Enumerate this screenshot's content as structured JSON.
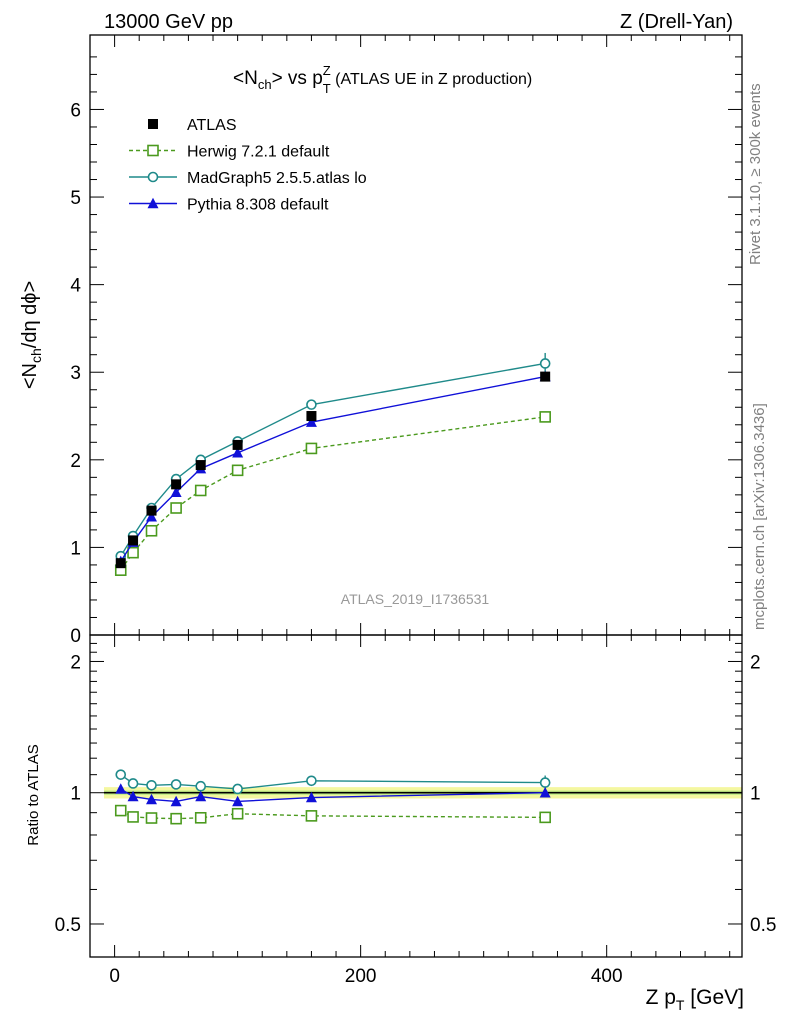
{
  "header": {
    "left": "13000 GeV pp",
    "right": "Z (Drell-Yan)"
  },
  "title": {
    "prefix": "<N",
    "sub1": "ch",
    "mid": "> vs p",
    "sup": "Z",
    "sub2": "T",
    "suffix": " (ATLAS UE in Z production)"
  },
  "side_labels": {
    "rivet": "Rivet 3.1.10, ≥ 300k events",
    "mcplots": "mcplots.cern.ch [arXiv:1306.3436]"
  },
  "watermark": "ATLAS_2019_I1736531",
  "ylabel_main": {
    "prefix": "<N",
    "sub": "ch",
    "suffix": "/dη dϕ>"
  },
  "ylabel_ratio": "Ratio to ATLAS",
  "xlabel": {
    "prefix": "Z p",
    "sub": "T",
    "suffix": " [GeV]"
  },
  "chart_data": [
    {
      "type": "scatter",
      "panel": "main",
      "xlim": [
        -20,
        510
      ],
      "ylim": [
        0,
        6.85
      ],
      "x_ticks": [
        0,
        200,
        400
      ],
      "y_ticks": [
        0,
        1,
        2,
        3,
        4,
        5,
        6
      ],
      "legend_position": "top-left",
      "series": [
        {
          "name": "ATLAS",
          "color": "#000000",
          "marker": "filled-square",
          "x": [
            5,
            15,
            30,
            50,
            70,
            100,
            160,
            350
          ],
          "y": [
            0.82,
            1.08,
            1.42,
            1.72,
            1.94,
            2.17,
            2.5,
            2.95
          ]
        },
        {
          "name": "Herwig 7.2.1 default",
          "color": "#4b9a1e",
          "marker": "open-square",
          "dashed": true,
          "x": [
            5,
            15,
            30,
            50,
            70,
            100,
            160,
            350
          ],
          "y": [
            0.74,
            0.94,
            1.19,
            1.45,
            1.65,
            1.88,
            2.13,
            2.49
          ]
        },
        {
          "name": "MadGraph5 2.5.5.atlas lo",
          "color": "#1f8a8a",
          "marker": "open-circle",
          "x": [
            5,
            15,
            30,
            50,
            70,
            100,
            160,
            350
          ],
          "y": [
            0.9,
            1.13,
            1.45,
            1.78,
            2.0,
            2.21,
            2.63,
            3.1
          ],
          "yerr": [
            0,
            0,
            0,
            0,
            0,
            0,
            0,
            0.12
          ]
        },
        {
          "name": "Pythia 8.308 default",
          "color": "#1010d8",
          "marker": "filled-triangle",
          "x": [
            5,
            15,
            30,
            50,
            70,
            100,
            160,
            350
          ],
          "y": [
            0.84,
            1.06,
            1.35,
            1.63,
            1.9,
            2.08,
            2.43,
            2.95
          ]
        }
      ]
    },
    {
      "type": "scatter",
      "panel": "ratio",
      "xlim": [
        -20,
        510
      ],
      "ylim": [
        0.42,
        2.3
      ],
      "log_y": true,
      "x_ticks": [
        0,
        200,
        400
      ],
      "y_ticks": [
        0.5,
        1,
        2
      ],
      "reference_band": [
        0.97,
        1.03
      ],
      "series": [
        {
          "name": "Herwig 7.2.1 default",
          "color": "#4b9a1e",
          "marker": "open-square",
          "dashed": true,
          "x": [
            5,
            15,
            30,
            50,
            70,
            100,
            160,
            350
          ],
          "y": [
            0.91,
            0.88,
            0.875,
            0.872,
            0.876,
            0.895,
            0.885,
            0.878
          ]
        },
        {
          "name": "MadGraph5 2.5.5.atlas lo",
          "color": "#1f8a8a",
          "marker": "open-circle",
          "x": [
            5,
            15,
            30,
            50,
            70,
            100,
            160,
            350
          ],
          "y": [
            1.1,
            1.05,
            1.04,
            1.045,
            1.035,
            1.02,
            1.065,
            1.055
          ],
          "yerr": [
            0,
            0,
            0,
            0,
            0,
            0,
            0,
            0.04
          ]
        },
        {
          "name": "Pythia 8.308 default",
          "color": "#1010d8",
          "marker": "filled-triangle",
          "x": [
            5,
            15,
            30,
            50,
            70,
            100,
            160,
            350
          ],
          "y": [
            1.02,
            0.98,
            0.965,
            0.955,
            0.98,
            0.955,
            0.975,
            1.0
          ]
        }
      ]
    }
  ]
}
